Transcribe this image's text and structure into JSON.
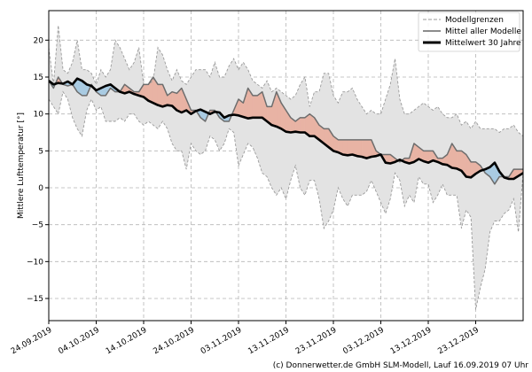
{
  "chart_data": {
    "type": "line",
    "ylabel": "Mittlere Lufttemperatur [°]",
    "ylim": [
      -18,
      24
    ],
    "yticks": [
      -15,
      -10,
      -5,
      0,
      5,
      10,
      15,
      20
    ],
    "x_start": "24.09.2019",
    "x_end": "02.01.2020",
    "xtick_labels": [
      "24.09.2019",
      "04.10.2019",
      "14.10.2019",
      "24.10.2019",
      "03.11.2019",
      "13.11.2019",
      "23.11.2019",
      "03.12.2019",
      "13.12.2019",
      "23.12.2019"
    ],
    "grid": true,
    "legend_position": "top-right",
    "legend": [
      {
        "label": "Modellgrenzen",
        "style": "dashed",
        "color": "#999999"
      },
      {
        "label": "Mittel aller Modelle",
        "style": "solid",
        "color": "#666666"
      },
      {
        "label": "Mittelwert 30 Jahre",
        "style": "solid-bold",
        "color": "#000000"
      }
    ],
    "colors": {
      "envelope_fill": "#e3e3e3",
      "envelope_line": "#9a9a9a",
      "warm_fill": "#e8b3a4",
      "cold_fill": "#a9cbe2",
      "mean_line": "#6d6d6d",
      "normal_line": "#000000"
    },
    "x_dates": [
      "24.09",
      "25.09",
      "26.09",
      "27.09",
      "28.09",
      "29.09",
      "30.09",
      "01.10",
      "02.10",
      "03.10",
      "04.10",
      "05.10",
      "06.10",
      "07.10",
      "08.10",
      "09.10",
      "10.10",
      "11.10",
      "12.10",
      "13.10",
      "14.10",
      "15.10",
      "16.10",
      "17.10",
      "18.10",
      "19.10",
      "20.10",
      "21.10",
      "22.10",
      "23.10",
      "24.10",
      "25.10",
      "26.10",
      "27.10",
      "28.10",
      "29.10",
      "30.10",
      "31.10",
      "01.11",
      "02.11",
      "03.11",
      "04.11",
      "05.11",
      "06.11",
      "07.11",
      "08.11",
      "09.11",
      "10.11",
      "11.11",
      "12.11",
      "13.11",
      "14.11",
      "15.11",
      "16.11",
      "17.11",
      "18.11",
      "19.11",
      "20.11",
      "21.11",
      "22.11",
      "23.11",
      "24.11",
      "25.11",
      "26.11",
      "27.11",
      "28.11",
      "29.11",
      "30.11",
      "01.12",
      "02.12",
      "03.12",
      "04.12",
      "05.12",
      "06.12",
      "07.12",
      "08.12",
      "09.12",
      "10.12",
      "11.12",
      "12.12",
      "13.12",
      "14.12",
      "15.12",
      "16.12",
      "17.12",
      "18.12",
      "19.12",
      "20.12",
      "21.12",
      "22.12",
      "23.12",
      "24.12",
      "25.12",
      "26.12",
      "27.12",
      "28.12",
      "29.12",
      "30.12",
      "31.12",
      "01.01",
      "02.01"
    ],
    "series": [
      {
        "name": "Modellgrenzen",
        "role": "upper",
        "values": [
          19.0,
          14.0,
          22.0,
          16.0,
          15.5,
          17.0,
          20.0,
          16.0,
          16.0,
          15.5,
          14.0,
          16.0,
          15.0,
          16.0,
          20.0,
          19.0,
          17.5,
          16.0,
          17.0,
          19.0,
          14.0,
          14.0,
          14.5,
          19.0,
          18.0,
          16.0,
          14.5,
          16.0,
          14.5,
          14.0,
          15.0,
          16.0,
          16.0,
          16.0,
          15.0,
          17.0,
          15.0,
          15.0,
          16.5,
          17.5,
          16.0,
          17.0,
          16.0,
          14.5,
          14.0,
          13.5,
          14.5,
          13.0,
          13.5,
          13.0,
          12.5,
          12.0,
          12.5,
          14.0,
          15.0,
          11.0,
          13.0,
          13.0,
          15.5,
          15.5,
          12.5,
          11.5,
          13.0,
          13.0,
          13.5,
          12.0,
          11.0,
          10.0,
          10.5,
          10.0,
          10.0,
          12.0,
          14.0,
          17.5,
          12.0,
          10.0,
          10.0,
          10.5,
          11.0,
          11.5,
          11.0,
          10.5,
          11.0,
          10.0,
          9.5,
          9.5,
          10.0,
          8.5,
          9.0,
          8.0,
          9.0,
          8.0,
          8.0,
          8.0,
          8.0,
          7.5,
          8.0,
          8.0,
          8.5,
          7.5,
          7.0
        ]
      },
      {
        "name": "Modellgrenzen",
        "role": "lower",
        "values": [
          12.0,
          11.0,
          10.0,
          13.0,
          12.0,
          9.5,
          8.0,
          7.0,
          10.5,
          12.0,
          10.5,
          11.0,
          9.0,
          9.0,
          9.0,
          9.5,
          9.0,
          10.0,
          10.0,
          9.0,
          8.5,
          9.0,
          8.5,
          8.0,
          9.0,
          8.0,
          6.0,
          5.0,
          5.0,
          2.5,
          6.0,
          5.0,
          4.5,
          5.0,
          7.0,
          6.5,
          5.0,
          6.0,
          8.0,
          7.5,
          3.0,
          4.5,
          6.0,
          5.5,
          4.0,
          2.0,
          1.5,
          0.0,
          -1.0,
          0.0,
          -1.5,
          1.0,
          3.0,
          0.0,
          -1.0,
          1.0,
          1.0,
          -1.5,
          -5.5,
          -4.5,
          -3.0,
          0.0,
          -1.5,
          -2.5,
          -1.0,
          -1.0,
          -1.0,
          -0.5,
          1.0,
          -0.5,
          -2.0,
          -3.5,
          -1.5,
          2.0,
          1.0,
          -2.5,
          -1.0,
          -2.0,
          1.5,
          0.5,
          0.5,
          -2.0,
          -1.0,
          0.5,
          -1.0,
          -1.0,
          -1.0,
          -5.5,
          -3.0,
          -4.0,
          -16.5,
          -13.5,
          -11.0,
          -6.0,
          -4.5,
          -4.5,
          -3.5,
          -3.0,
          -1.5,
          -6.0,
          2.0
        ]
      },
      {
        "name": "Mittel aller Modelle",
        "role": "model_mean",
        "values": [
          14.5,
          13.5,
          15.0,
          14.0,
          13.8,
          14.0,
          13.0,
          12.5,
          12.5,
          14.0,
          13.0,
          12.5,
          12.5,
          13.5,
          13.0,
          13.0,
          14.0,
          13.5,
          13.0,
          13.0,
          14.0,
          14.0,
          15.0,
          14.0,
          14.0,
          12.5,
          13.0,
          12.8,
          13.5,
          12.0,
          10.5,
          10.5,
          9.5,
          9.0,
          10.5,
          10.5,
          9.5,
          9.0,
          9.0,
          10.5,
          12.0,
          11.5,
          13.5,
          12.5,
          12.5,
          13.0,
          11.0,
          11.0,
          13.0,
          11.5,
          10.5,
          9.5,
          9.0,
          9.5,
          9.5,
          10.0,
          9.5,
          8.5,
          8.0,
          8.0,
          7.0,
          6.5,
          6.5,
          6.5,
          6.5,
          6.5,
          6.5,
          6.5,
          6.5,
          5.0,
          4.5,
          4.5,
          4.5,
          4.0,
          3.5,
          4.0,
          4.0,
          6.0,
          5.5,
          5.0,
          5.0,
          5.0,
          4.0,
          4.0,
          4.5,
          6.0,
          5.0,
          5.0,
          4.5,
          3.5,
          3.5,
          3.0,
          2.0,
          1.5,
          0.5,
          1.5,
          1.5,
          1.5,
          2.5,
          2.5,
          2.5
        ]
      },
      {
        "name": "Mittelwert 30 Jahre",
        "role": "normal",
        "values": [
          14.5,
          14.0,
          14.2,
          14.1,
          14.4,
          14.0,
          14.8,
          14.5,
          14.0,
          13.8,
          13.2,
          13.5,
          13.8,
          14.0,
          13.5,
          13.0,
          12.8,
          13.0,
          12.7,
          12.5,
          12.3,
          11.8,
          11.5,
          11.2,
          11.0,
          11.2,
          11.1,
          10.5,
          10.2,
          10.5,
          10.0,
          10.4,
          10.6,
          10.3,
          10.0,
          10.3,
          10.2,
          9.5,
          9.8,
          9.9,
          9.8,
          9.6,
          9.4,
          9.5,
          9.5,
          9.5,
          9.0,
          8.5,
          8.3,
          8.0,
          7.6,
          7.5,
          7.6,
          7.5,
          7.5,
          7.0,
          7.0,
          6.5,
          6.0,
          5.5,
          5.0,
          4.8,
          4.5,
          4.4,
          4.5,
          4.3,
          4.2,
          4.0,
          4.2,
          4.3,
          4.5,
          3.4,
          3.3,
          3.5,
          3.8,
          3.5,
          3.3,
          3.5,
          3.9,
          3.6,
          3.4,
          3.7,
          3.5,
          3.2,
          3.1,
          2.7,
          2.6,
          2.3,
          1.5,
          1.4,
          1.9,
          2.3,
          2.5,
          2.8,
          3.4,
          2.2,
          1.4,
          1.2,
          1.2,
          1.6,
          2.0
        ]
      }
    ]
  },
  "footer": {
    "credit": "(c) Donnerwetter.de GmbH SLM-Modell, Lauf 16.09.2019 07 Uhr"
  }
}
